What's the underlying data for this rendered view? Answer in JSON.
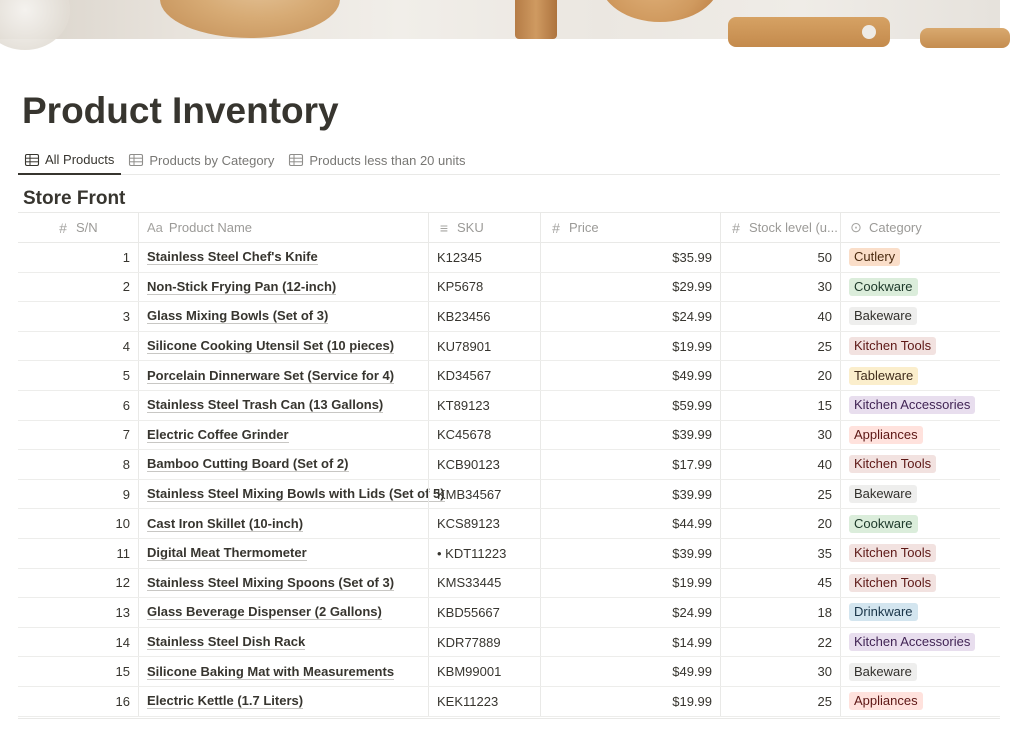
{
  "page": {
    "title": "Product Inventory"
  },
  "tabs": [
    {
      "label": "All Products",
      "icon": "table-icon",
      "active": true
    },
    {
      "label": "Products by Category",
      "icon": "table-icon",
      "active": false
    },
    {
      "label": "Products less than 20 units",
      "icon": "table-icon",
      "active": false
    }
  ],
  "section": {
    "title": "Store Front"
  },
  "columns": {
    "sn": {
      "label": "S/N",
      "icon": "#"
    },
    "name": {
      "label": "Product Name",
      "icon": "Aa"
    },
    "sku": {
      "label": "SKU",
      "icon": "≡"
    },
    "price": {
      "label": "Price",
      "icon": "#"
    },
    "stock": {
      "label": "Stock level (u...",
      "icon": "#"
    },
    "category": {
      "label": "Category",
      "icon": "⊙"
    }
  },
  "category_colors": {
    "Cutlery": {
      "bg": "#fadec9",
      "fg": "#49290e"
    },
    "Cookware": {
      "bg": "#dbeddb",
      "fg": "#1c3829"
    },
    "Bakeware": {
      "bg": "#eeeeed",
      "fg": "#32302c"
    },
    "Kitchen Tools": {
      "bg": "#f2e2e0",
      "fg": "#5d1715"
    },
    "Tableware": {
      "bg": "#fbeecc",
      "fg": "#402c1b"
    },
    "Kitchen Accessories": {
      "bg": "#e8deee",
      "fg": "#412454"
    },
    "Appliances": {
      "bg": "#ffe2dd",
      "fg": "#5d1715"
    },
    "Drinkware": {
      "bg": "#d3e5ef",
      "fg": "#183347"
    }
  },
  "rows": [
    {
      "sn": "1",
      "name": "Stainless Steel Chef's Knife",
      "sku": "K12345",
      "price": "$35.99",
      "stock": "50",
      "category": "Cutlery"
    },
    {
      "sn": "2",
      "name": "Non-Stick Frying Pan (12-inch)",
      "sku": "KP5678",
      "price": "$29.99",
      "stock": "30",
      "category": "Cookware"
    },
    {
      "sn": "3",
      "name": "Glass Mixing Bowls (Set of 3)",
      "sku": "KB23456",
      "price": "$24.99",
      "stock": "40",
      "category": "Bakeware"
    },
    {
      "sn": "4",
      "name": "Silicone Cooking Utensil Set (10 pieces)",
      "sku": "KU78901",
      "price": "$19.99",
      "stock": "25",
      "category": "Kitchen Tools"
    },
    {
      "sn": "5",
      "name": "Porcelain Dinnerware Set (Service for 4)",
      "sku": "KD34567",
      "price": "$49.99",
      "stock": "20",
      "category": "Tableware"
    },
    {
      "sn": "6",
      "name": "Stainless Steel Trash Can (13 Gallons)",
      "sku": "KT89123",
      "price": "$59.99",
      "stock": "15",
      "category": "Kitchen Accessories"
    },
    {
      "sn": "7",
      "name": "Electric Coffee Grinder",
      "sku": "KC45678",
      "price": "$39.99",
      "stock": "30",
      "category": "Appliances"
    },
    {
      "sn": "8",
      "name": "Bamboo Cutting Board (Set of 2)",
      "sku": "KCB90123",
      "price": "$17.99",
      "stock": "40",
      "category": "Kitchen Tools"
    },
    {
      "sn": "9",
      "name": "Stainless Steel Mixing Bowls with Lids (Set of 5)",
      "sku": "KMB34567",
      "price": "$39.99",
      "stock": "25",
      "category": "Bakeware"
    },
    {
      "sn": "10",
      "name": "Cast Iron Skillet (10-inch)",
      "sku": "KCS89123",
      "price": "$44.99",
      "stock": "20",
      "category": "Cookware"
    },
    {
      "sn": "11",
      "name": "Digital Meat Thermometer",
      "sku": "• KDT11223",
      "price": "$39.99",
      "stock": "35",
      "category": "Kitchen Tools"
    },
    {
      "sn": "12",
      "name": "Stainless Steel Mixing Spoons (Set of 3)",
      "sku": "KMS33445",
      "price": "$19.99",
      "stock": "45",
      "category": "Kitchen Tools"
    },
    {
      "sn": "13",
      "name": "Glass Beverage Dispenser (2 Gallons)",
      "sku": "KBD55667",
      "price": "$24.99",
      "stock": "18",
      "category": "Drinkware"
    },
    {
      "sn": "14",
      "name": "Stainless Steel Dish Rack",
      "sku": "KDR77889",
      "price": "$14.99",
      "stock": "22",
      "category": "Kitchen Accessories"
    },
    {
      "sn": "15",
      "name": "Silicone Baking Mat with Measurements",
      "sku": "KBM99001",
      "price": "$49.99",
      "stock": "30",
      "category": "Bakeware"
    },
    {
      "sn": "16",
      "name": "Electric Kettle (1.7 Liters)",
      "sku": "KEK11223",
      "price": "$19.99",
      "stock": "25",
      "category": "Appliances"
    }
  ]
}
